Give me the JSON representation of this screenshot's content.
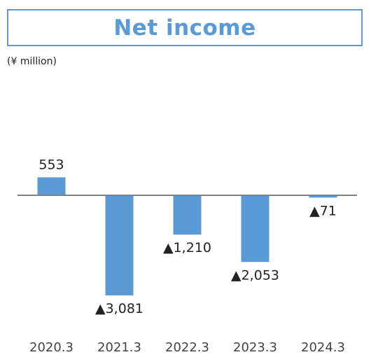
{
  "chart_data": {
    "type": "bar",
    "title": "Net income",
    "unit_label": "(¥ million)",
    "categories": [
      "2020.3",
      "2021.3",
      "2022.3",
      "2023.3",
      "2024.3"
    ],
    "values": [
      553,
      -3081,
      -1210,
      -2053,
      -71
    ],
    "value_labels": [
      "553",
      "▲3,081",
      "▲1,210",
      "▲2,053",
      "▲71"
    ],
    "bar_color": "#5b9bd5",
    "axis_color": "#808080",
    "grid": false,
    "legend": false
  }
}
